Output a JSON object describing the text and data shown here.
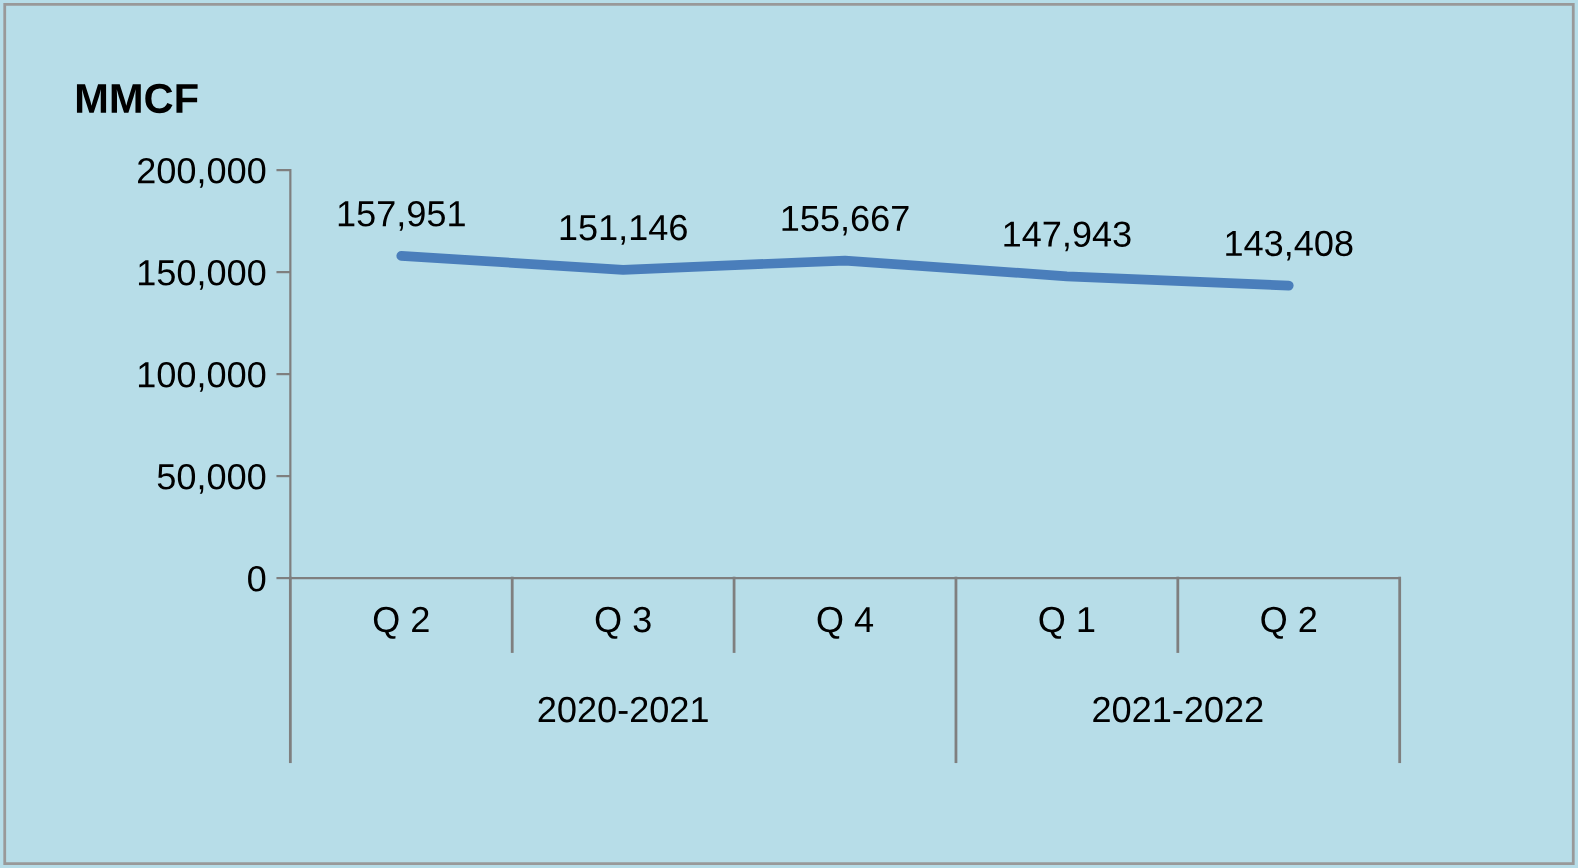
{
  "chart_data": {
    "type": "line",
    "ylabel": "MMCF",
    "categories": [
      "Q 2",
      "Q 3",
      "Q 4",
      "Q 1",
      "Q 2"
    ],
    "series": [
      {
        "color": "#4a7ebb",
        "values": [
          157951,
          151146,
          155667,
          147943,
          143408
        ],
        "value_labels": [
          "157,951",
          "151,146",
          "155,667",
          "147,943",
          "143,408"
        ]
      }
    ],
    "ylim": [
      0,
      200000
    ],
    "yticks": [
      {
        "value": 0,
        "label": "0"
      },
      {
        "value": 50000,
        "label": "50,000"
      },
      {
        "value": 100000,
        "label": "100,000"
      },
      {
        "value": 150000,
        "label": "150,000"
      },
      {
        "value": 200000,
        "label": "200,000"
      }
    ],
    "annotations": [
      "2020-2021",
      "2021-2022"
    ],
    "grid": false,
    "marker": "none",
    "line_style": "solid"
  }
}
